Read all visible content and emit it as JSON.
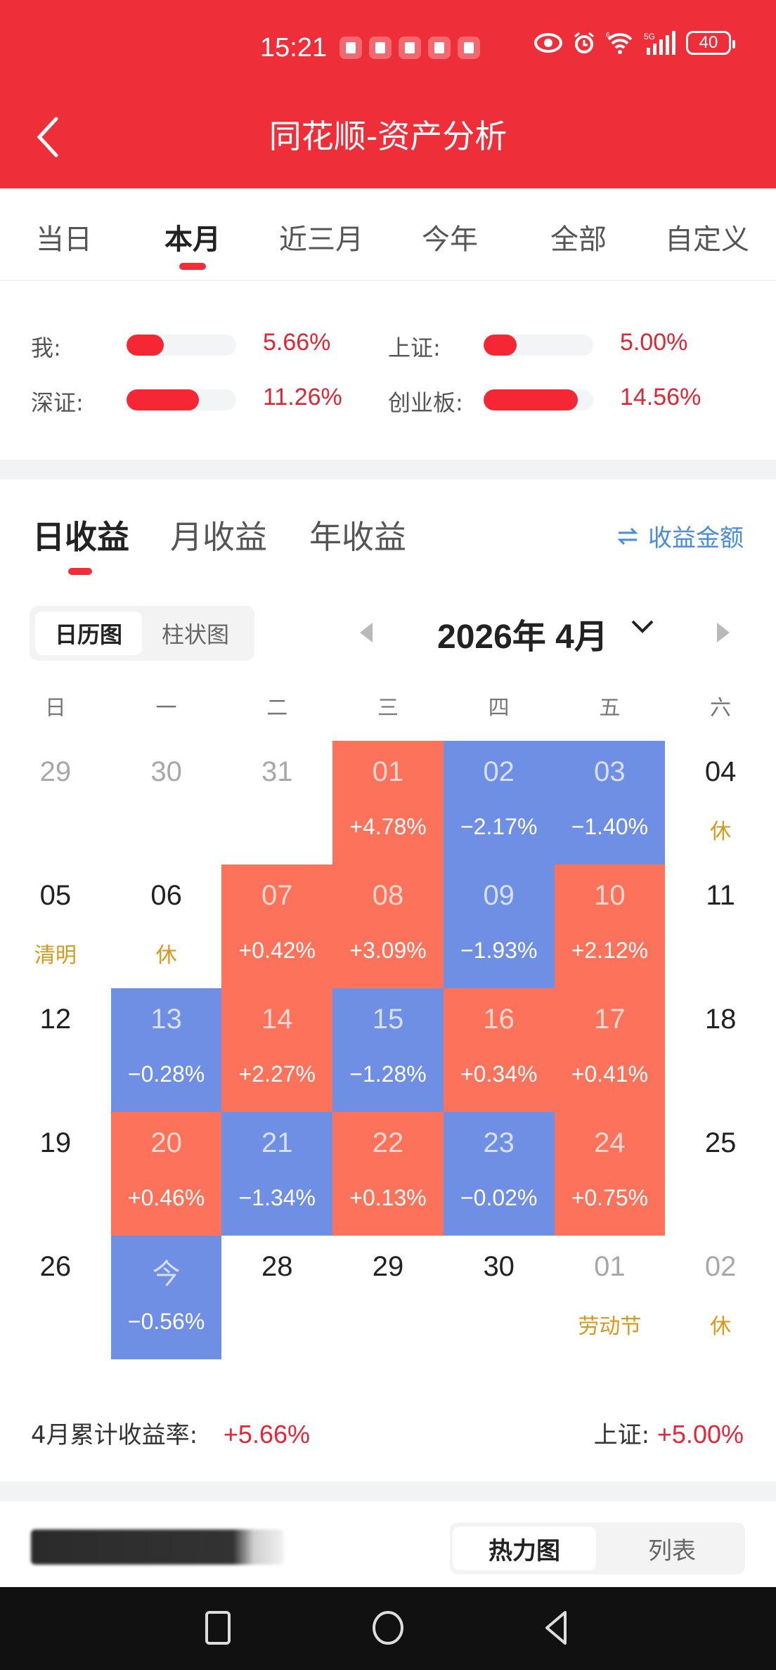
{
  "status_bar": {
    "time": "15:21",
    "notification_count": 5,
    "battery": "40",
    "network": "5G"
  },
  "header": {
    "title": "同花顺-资产分析",
    "back_icon": "chevron-left-icon"
  },
  "period_tabs": [
    {
      "label": "当日",
      "active": false
    },
    {
      "label": "本月",
      "active": true
    },
    {
      "label": "近三月",
      "active": false
    },
    {
      "label": "今年",
      "active": false
    },
    {
      "label": "全部",
      "active": false
    },
    {
      "label": "自定义",
      "active": false
    }
  ],
  "comparison": [
    {
      "label": "我:",
      "value": "5.66%",
      "fill_pct": 34
    },
    {
      "label": "上证:",
      "value": "5.00%",
      "fill_pct": 30
    },
    {
      "label": "深证:",
      "value": "11.26%",
      "fill_pct": 66
    },
    {
      "label": "创业板:",
      "value": "14.56%",
      "fill_pct": 86
    }
  ],
  "section_tabs": [
    {
      "label": "日收益",
      "active": true
    },
    {
      "label": "月收益",
      "active": false
    },
    {
      "label": "年收益",
      "active": false
    }
  ],
  "switch_link": {
    "icon": "swap-icon",
    "label": "收益金额"
  },
  "view_toggle": [
    {
      "label": "日历图",
      "active": true
    },
    {
      "label": "柱状图",
      "active": false
    }
  ],
  "month_selector": {
    "label": "2026年 4月"
  },
  "weekdays": [
    "日",
    "一",
    "二",
    "三",
    "四",
    "五",
    "六"
  ],
  "colors": {
    "brand_red": "#EE2F3A",
    "gain": "#FC725A",
    "loss": "#6E8FE3",
    "holiday": "#D9981C",
    "link_blue": "#4A8CD8",
    "value_red": "#E0283A"
  },
  "calendar": {
    "weeks": [
      [
        {
          "day": "29",
          "type": "muted"
        },
        {
          "day": "30",
          "type": "muted"
        },
        {
          "day": "31",
          "type": "muted"
        },
        {
          "day": "01",
          "type": "up",
          "change": "+4.78%"
        },
        {
          "day": "02",
          "type": "down",
          "change": "−2.17%"
        },
        {
          "day": "03",
          "type": "down",
          "change": "−1.40%"
        },
        {
          "day": "04",
          "type": "normal",
          "note": "休"
        }
      ],
      [
        {
          "day": "05",
          "type": "normal",
          "note": "清明"
        },
        {
          "day": "06",
          "type": "normal",
          "note": "休"
        },
        {
          "day": "07",
          "type": "up",
          "change": "+0.42%"
        },
        {
          "day": "08",
          "type": "up",
          "change": "+3.09%"
        },
        {
          "day": "09",
          "type": "down",
          "change": "−1.93%"
        },
        {
          "day": "10",
          "type": "up",
          "change": "+2.12%"
        },
        {
          "day": "11",
          "type": "normal"
        }
      ],
      [
        {
          "day": "12",
          "type": "normal"
        },
        {
          "day": "13",
          "type": "down",
          "change": "−0.28%"
        },
        {
          "day": "14",
          "type": "up",
          "change": "+2.27%"
        },
        {
          "day": "15",
          "type": "down",
          "change": "−1.28%"
        },
        {
          "day": "16",
          "type": "up",
          "change": "+0.34%"
        },
        {
          "day": "17",
          "type": "up",
          "change": "+0.41%"
        },
        {
          "day": "18",
          "type": "normal"
        }
      ],
      [
        {
          "day": "19",
          "type": "normal"
        },
        {
          "day": "20",
          "type": "up",
          "change": "+0.46%"
        },
        {
          "day": "21",
          "type": "down",
          "change": "−1.34%"
        },
        {
          "day": "22",
          "type": "up",
          "change": "+0.13%"
        },
        {
          "day": "23",
          "type": "down",
          "change": "−0.02%"
        },
        {
          "day": "24",
          "type": "up",
          "change": "+0.75%"
        },
        {
          "day": "25",
          "type": "normal"
        }
      ],
      [
        {
          "day": "26",
          "type": "normal"
        },
        {
          "day": "今",
          "type": "down",
          "change": "−0.56%"
        },
        {
          "day": "28",
          "type": "normal"
        },
        {
          "day": "29",
          "type": "normal"
        },
        {
          "day": "30",
          "type": "normal"
        },
        {
          "day": "01",
          "type": "muted",
          "note": "劳动节"
        },
        {
          "day": "02",
          "type": "muted",
          "note": "休"
        }
      ]
    ]
  },
  "summary": {
    "left_label": "4月累计收益率:",
    "left_value": "+5.66%",
    "right_label": "上证:",
    "right_value": "+5.00%"
  },
  "bottom_section": {
    "title_blurred": true,
    "toggle": [
      {
        "label": "热力图",
        "active": true
      },
      {
        "label": "列表",
        "active": false
      }
    ]
  },
  "navbar": {
    "recents_icon": "square-icon",
    "home_icon": "circle-icon",
    "back_icon": "triangle-back-icon"
  }
}
